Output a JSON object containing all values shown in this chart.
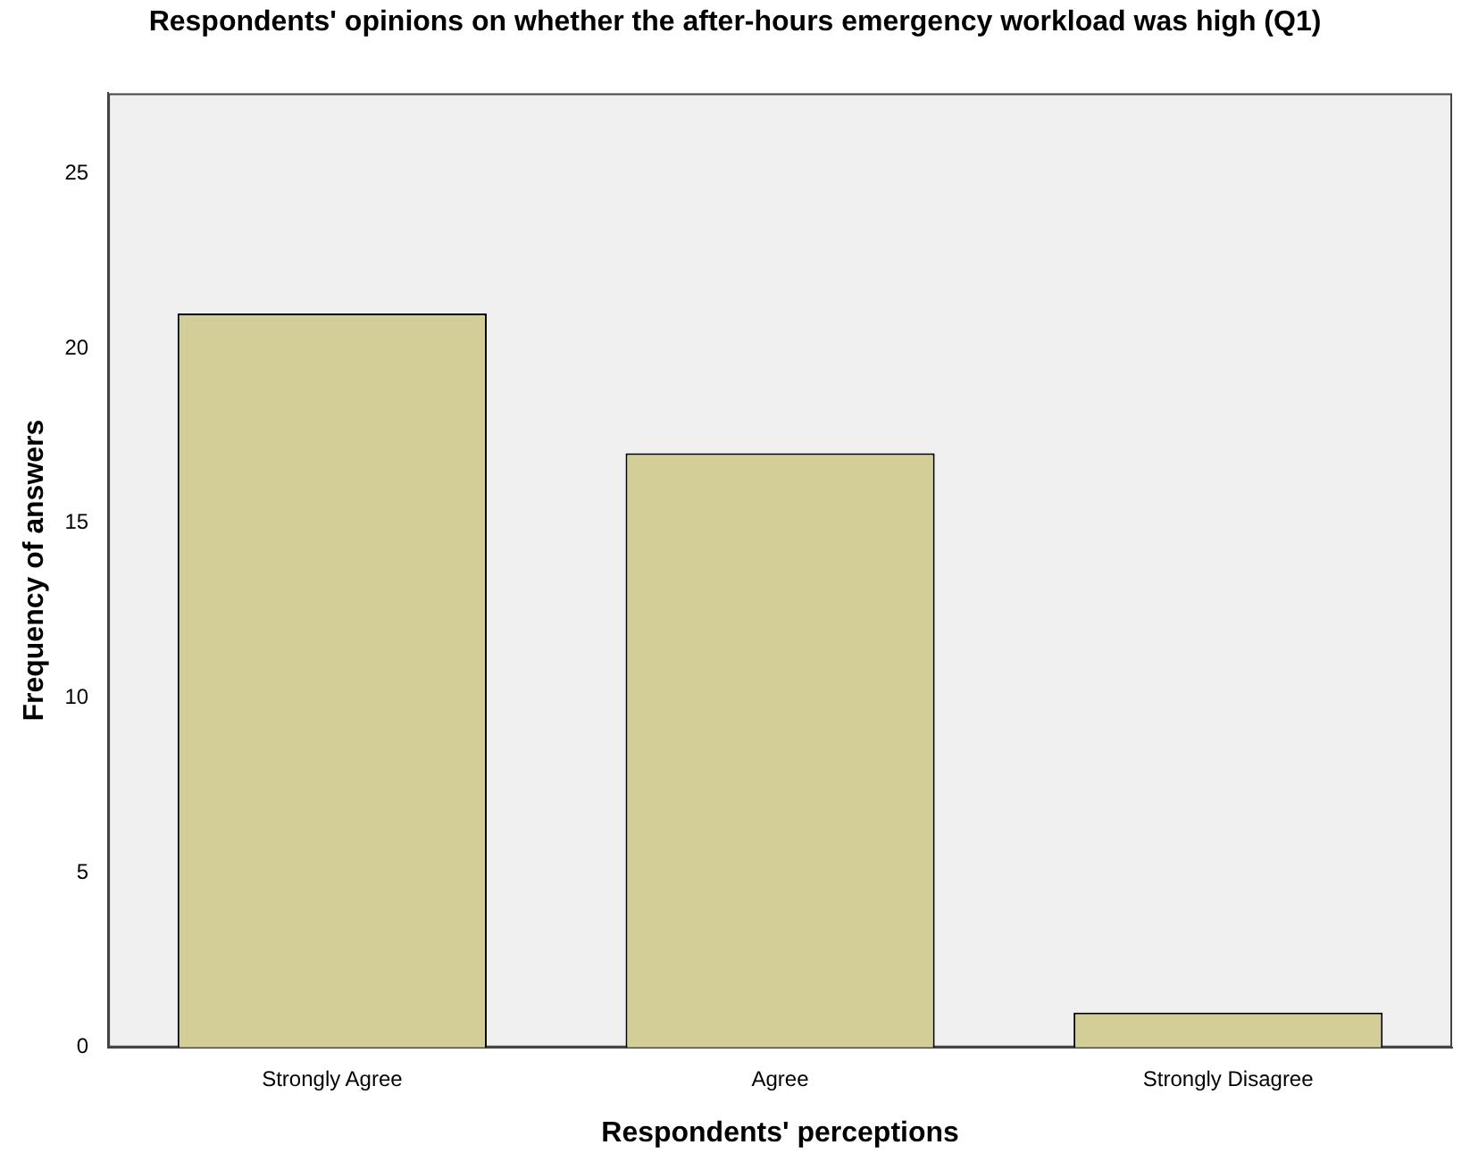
{
  "chart_data": {
    "type": "bar",
    "title": "Respondents' opinions on whether the after-hours emergency workload was high (Q1)",
    "xlabel": "Respondents' perceptions",
    "ylabel": "Frequency of answers",
    "categories": [
      "Strongly Agree",
      "Agree",
      "Strongly Disagree"
    ],
    "values": [
      21,
      17,
      1
    ],
    "color": "#d3ce97",
    "ylim": [
      0,
      27.3
    ],
    "yticks": [
      0,
      5,
      10,
      15,
      20,
      25
    ],
    "grid": false,
    "legend": false
  }
}
